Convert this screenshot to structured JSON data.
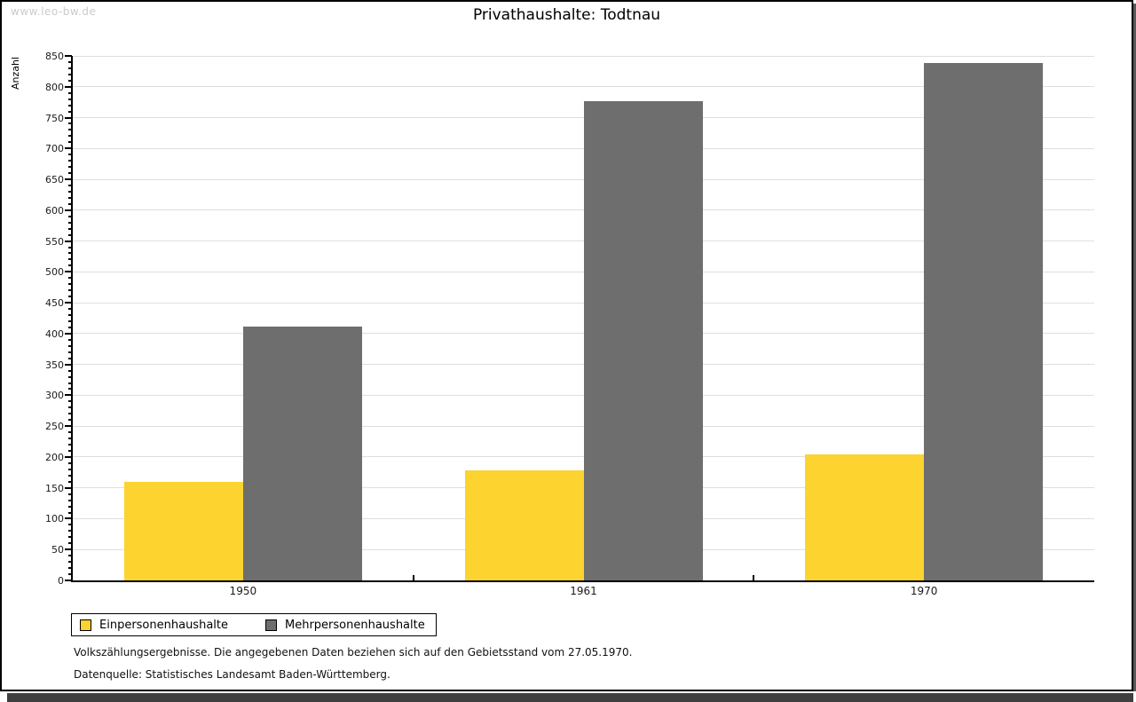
{
  "watermark": "www.leo-bw.de",
  "title": "Privathaushalte: Todtnau",
  "chart_data": {
    "type": "bar",
    "categories": [
      "1950",
      "1961",
      "1970"
    ],
    "series": [
      {
        "name": "Einpersonenhaushalte",
        "color": "#FCD32F",
        "values": [
          160,
          178,
          204
        ]
      },
      {
        "name": "Mehrpersonenhaushalte",
        "color": "#6E6E6E",
        "values": [
          411,
          777,
          838
        ]
      }
    ],
    "title": "Privathaushalte: Todtnau",
    "xlabel": "",
    "ylabel": "Anzahl",
    "ylim": [
      0,
      850
    ],
    "ytick_step": 50,
    "yminor_step": 10,
    "grid": true,
    "gridline_color": "#DEDEDE",
    "axis_color": "#000000",
    "legend_position": "bottom-left"
  },
  "footnotes": {
    "line1": "Volkszählungsergebnisse. Die angegebenen Daten beziehen sich auf den Gebietsstand vom 27.05.1970.",
    "line2": "Datenquelle: Statistisches Landesamt Baden-Württemberg."
  }
}
